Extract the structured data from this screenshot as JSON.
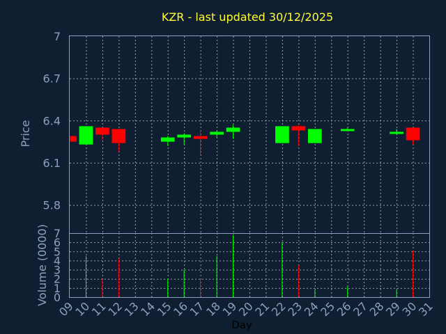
{
  "chart_data": {
    "type": "candlestick",
    "title": "KZR - last updated 30/12/2025",
    "xlabel": "Day",
    "colors": {
      "background": "#0f1f31",
      "up": "#00ff00",
      "down": "#ff0000",
      "title": "#ffff33",
      "axis": "#8aa2bf"
    },
    "x_ticks": [
      "09",
      "10",
      "11",
      "12",
      "13",
      "14",
      "15",
      "16",
      "17",
      "18",
      "19",
      "20",
      "21",
      "22",
      "23",
      "24",
      "25",
      "26",
      "27",
      "28",
      "29",
      "30",
      "31"
    ],
    "price": {
      "ylabel": "Price",
      "ylim": [
        5.6,
        7.0
      ],
      "y_ticks": [
        "7",
        "6.7",
        "6.4",
        "6.1",
        "5.8"
      ],
      "grid": true,
      "candles": [
        {
          "day": "09",
          "open": 6.29,
          "high": 6.29,
          "low": 6.25,
          "close": 6.25
        },
        {
          "day": "10",
          "open": 6.23,
          "high": 6.36,
          "low": 6.23,
          "close": 6.36
        },
        {
          "day": "11",
          "open": 6.35,
          "high": 6.35,
          "low": 6.26,
          "close": 6.3
        },
        {
          "day": "12",
          "open": 6.34,
          "high": 6.34,
          "low": 6.18,
          "close": 6.24
        },
        {
          "day": "15",
          "open": 6.25,
          "high": 6.29,
          "low": 6.22,
          "close": 6.28
        },
        {
          "day": "16",
          "open": 6.28,
          "high": 6.31,
          "low": 6.23,
          "close": 6.3
        },
        {
          "day": "17",
          "open": 6.29,
          "high": 6.33,
          "low": 6.16,
          "close": 6.27
        },
        {
          "day": "18",
          "open": 6.3,
          "high": 6.33,
          "low": 6.28,
          "close": 6.32
        },
        {
          "day": "19",
          "open": 6.32,
          "high": 6.37,
          "low": 6.27,
          "close": 6.35
        },
        {
          "day": "22",
          "open": 6.24,
          "high": 6.36,
          "low": 6.24,
          "close": 6.36
        },
        {
          "day": "23",
          "open": 6.36,
          "high": 6.37,
          "low": 6.22,
          "close": 6.33
        },
        {
          "day": "24",
          "open": 6.24,
          "high": 6.34,
          "low": 6.24,
          "close": 6.34
        },
        {
          "day": "26",
          "open": 6.33,
          "high": 6.35,
          "low": 6.33,
          "close": 6.34
        },
        {
          "day": "29",
          "open": 6.31,
          "high": 6.34,
          "low": 6.3,
          "close": 6.32
        },
        {
          "day": "30",
          "open": 6.35,
          "high": 6.35,
          "low": 6.23,
          "close": 6.26
        }
      ]
    },
    "volume": {
      "ylabel": "Volume (0000)",
      "ylim": [
        0,
        7
      ],
      "y_ticks": [
        "7",
        "6",
        "5",
        "4",
        "3",
        "2",
        "1",
        "0"
      ],
      "grid": true,
      "bars": [
        {
          "day": "10",
          "value": 4.5,
          "direction": "up"
        },
        {
          "day": "11",
          "value": 2.0,
          "direction": "down"
        },
        {
          "day": "12",
          "value": 4.2,
          "direction": "down"
        },
        {
          "day": "15",
          "value": 2.0,
          "direction": "up"
        },
        {
          "day": "16",
          "value": 3.0,
          "direction": "up"
        },
        {
          "day": "17",
          "value": 2.0,
          "direction": "down"
        },
        {
          "day": "18",
          "value": 4.5,
          "direction": "up"
        },
        {
          "day": "19",
          "value": 6.8,
          "direction": "up"
        },
        {
          "day": "22",
          "value": 6.0,
          "direction": "up"
        },
        {
          "day": "23",
          "value": 3.5,
          "direction": "down"
        },
        {
          "day": "24",
          "value": 0.8,
          "direction": "up"
        },
        {
          "day": "26",
          "value": 1.2,
          "direction": "up"
        },
        {
          "day": "29",
          "value": 0.8,
          "direction": "up"
        },
        {
          "day": "30",
          "value": 5.1,
          "direction": "down"
        }
      ]
    }
  }
}
